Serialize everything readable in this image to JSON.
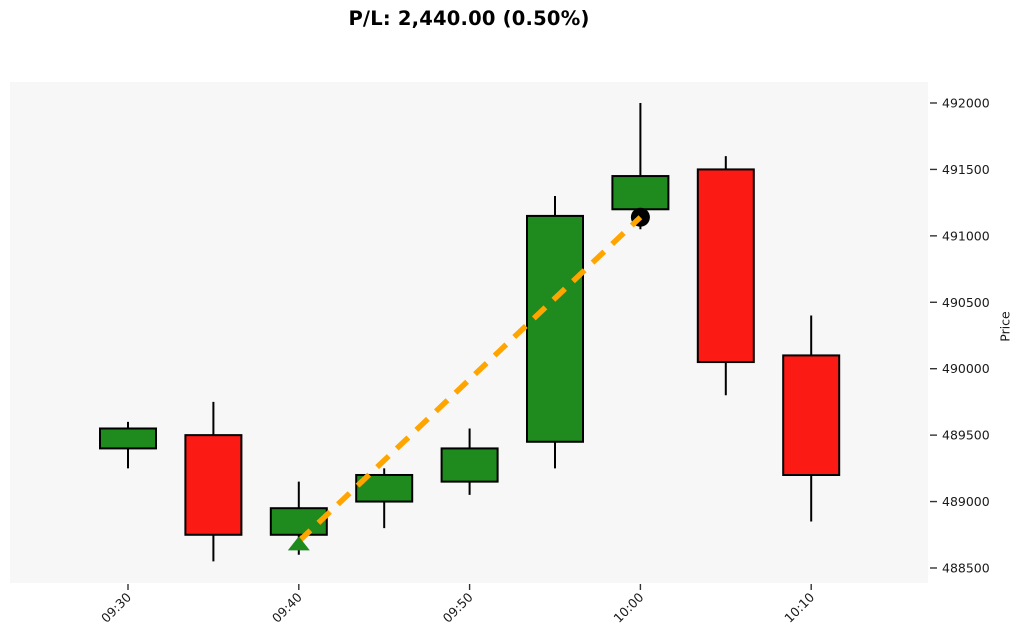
{
  "title": "P/L: 2,440.00 (0.50%)",
  "colors": {
    "up": "#1f8b1f",
    "down": "#fc1a14",
    "edge": "#000000",
    "wick": "#000000",
    "trade_line": "#ffa500",
    "entry_marker": "#1f8b1f",
    "exit_marker": "#000000",
    "plot_bg": "#f7f7f7",
    "page_bg": "#ffffff",
    "tick_color": "#333333",
    "label_color": "#1a1a1a"
  },
  "chart_data": {
    "type": "candlestick",
    "title": "P/L: 2,440.00 (0.50%)",
    "ylabel": "Price",
    "xlabel": "",
    "grid": false,
    "legend_position": "none",
    "yaxis_side": "right",
    "ylim": [
      488387,
      492158
    ],
    "y_ticks": [
      488500,
      489000,
      489500,
      490000,
      490500,
      491000,
      491500,
      492000
    ],
    "x": [
      "09:30",
      "09:35",
      "09:40",
      "09:45",
      "09:50",
      "09:55",
      "10:00",
      "10:05",
      "10:10"
    ],
    "x_ticks": [
      {
        "index": 0,
        "label": "09:30"
      },
      {
        "index": 2,
        "label": "09:40"
      },
      {
        "index": 4,
        "label": "09:50"
      },
      {
        "index": 6,
        "label": "10:00"
      },
      {
        "index": 8,
        "label": "10:10"
      }
    ],
    "candles": [
      {
        "time": "09:30",
        "open": 489400,
        "high": 489600,
        "low": 489250,
        "close": 489550,
        "direction": "up"
      },
      {
        "time": "09:35",
        "open": 489500,
        "high": 489750,
        "low": 488550,
        "close": 488750,
        "direction": "down"
      },
      {
        "time": "09:40",
        "open": 488750,
        "high": 489150,
        "low": 488600,
        "close": 488950,
        "direction": "up"
      },
      {
        "time": "09:45",
        "open": 489000,
        "high": 489250,
        "low": 488800,
        "close": 489200,
        "direction": "up"
      },
      {
        "time": "09:50",
        "open": 489150,
        "high": 489550,
        "low": 489050,
        "close": 489400,
        "direction": "up"
      },
      {
        "time": "09:55",
        "open": 489450,
        "high": 491300,
        "low": 489250,
        "close": 491150,
        "direction": "up"
      },
      {
        "time": "10:00",
        "open": 491200,
        "high": 492000,
        "low": 491050,
        "close": 491450,
        "direction": "up"
      },
      {
        "time": "10:05",
        "open": 491500,
        "high": 491600,
        "low": 489800,
        "close": 490050,
        "direction": "down"
      },
      {
        "time": "10:10",
        "open": 490100,
        "high": 490400,
        "low": 488850,
        "close": 489200,
        "direction": "down"
      }
    ],
    "trade": {
      "entry": {
        "time": "09:40",
        "index": 2,
        "price": 488700,
        "marker": "triangle-up"
      },
      "exit": {
        "time": "10:00",
        "index": 6,
        "price": 491140,
        "marker": "circle"
      },
      "pl": "2,440.00",
      "pl_pct": "0.50%"
    }
  }
}
